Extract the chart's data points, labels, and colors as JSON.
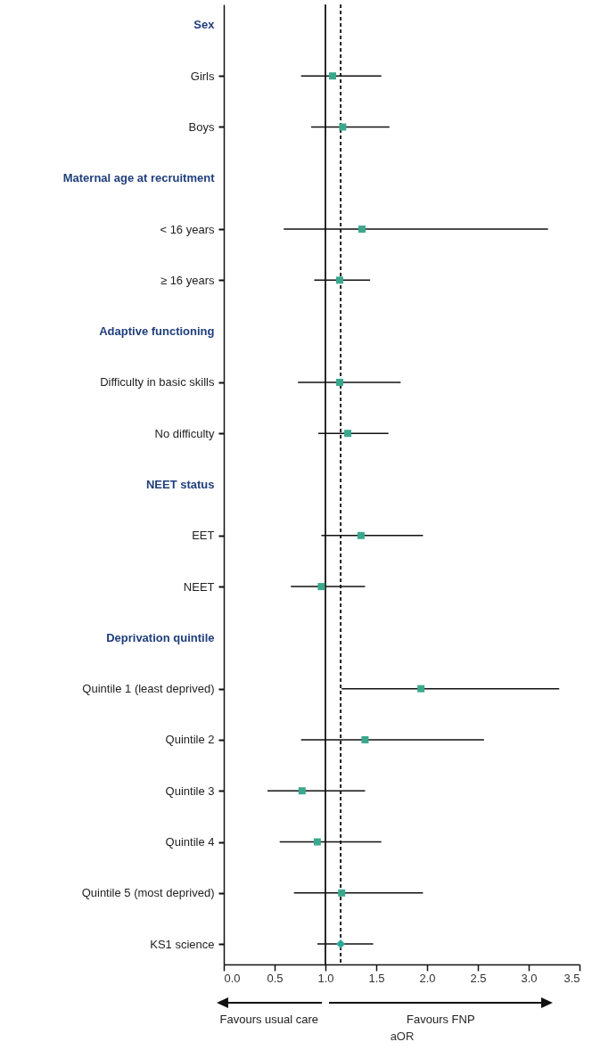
{
  "chart_data": {
    "type": "scatter",
    "orientation": "horizontal",
    "xlabel": "aOR",
    "categories": [
      "Sex",
      "Girls",
      "Boys",
      "Maternal age at recruitment",
      "< 16 years",
      "≥ 16 years",
      "Adaptive functioning",
      "Difficulty in basic skills",
      "No difficulty",
      "NEET status",
      "EET",
      "NEET",
      "Deprivation quintile",
      "Quintile 1 (least deprived)",
      "Quintile 2",
      "Quintile 3",
      "Quintile 4",
      "Quintile 5 (most deprived)",
      "KS1 science"
    ],
    "series": [
      {
        "color": "#3aa88c",
        "marker": "square",
        "values": [
          null,
          1.07,
          1.17,
          null,
          1.36,
          1.14,
          null,
          1.14,
          1.22,
          null,
          1.35,
          0.96,
          null,
          1.94,
          1.39,
          0.77,
          0.92,
          1.16,
          null
        ],
        "errors": [
          null,
          [
            0.76,
            1.55
          ],
          [
            0.86,
            1.63
          ],
          null,
          [
            0.59,
            3.19
          ],
          [
            0.89,
            1.44
          ],
          null,
          [
            0.73,
            1.74
          ],
          [
            0.93,
            1.62
          ],
          null,
          [
            0.96,
            1.96
          ],
          [
            0.66,
            1.39
          ],
          null,
          [
            1.16,
            3.3
          ],
          [
            0.76,
            2.56
          ],
          [
            0.43,
            1.39
          ],
          [
            0.55,
            1.55
          ],
          [
            0.69,
            1.96
          ],
          null
        ]
      },
      {
        "color": "#2fa89c",
        "marker": "diamond",
        "values": [
          null,
          null,
          null,
          null,
          null,
          null,
          null,
          null,
          null,
          null,
          null,
          null,
          null,
          null,
          null,
          null,
          null,
          null,
          1.15
        ],
        "errors": [
          null,
          null,
          null,
          null,
          null,
          null,
          null,
          null,
          null,
          null,
          null,
          null,
          null,
          null,
          null,
          null,
          null,
          null,
          [
            0.92,
            1.47
          ]
        ]
      }
    ],
    "xlim": [
      0,
      3.5
    ],
    "xticks": [
      {
        "value": 0,
        "label": "0.0"
      },
      {
        "value": 0.5,
        "label": "0.5"
      },
      {
        "value": 1,
        "label": "1.0"
      },
      {
        "value": 1.5,
        "label": "1.5"
      },
      {
        "value": 2,
        "label": "2.0"
      },
      {
        "value": 2.5,
        "label": "2.5"
      },
      {
        "value": 3,
        "label": "3.0"
      },
      {
        "value": 3.5,
        "label": "3.5"
      }
    ],
    "ref_lines": [
      {
        "axis": "x",
        "value": 1
      },
      {
        "axis": "x",
        "value": 1.15,
        "line_style": "dashed"
      }
    ],
    "annotations": [
      "Favours usual care",
      "Favours FNP"
    ],
    "grid": false
  }
}
